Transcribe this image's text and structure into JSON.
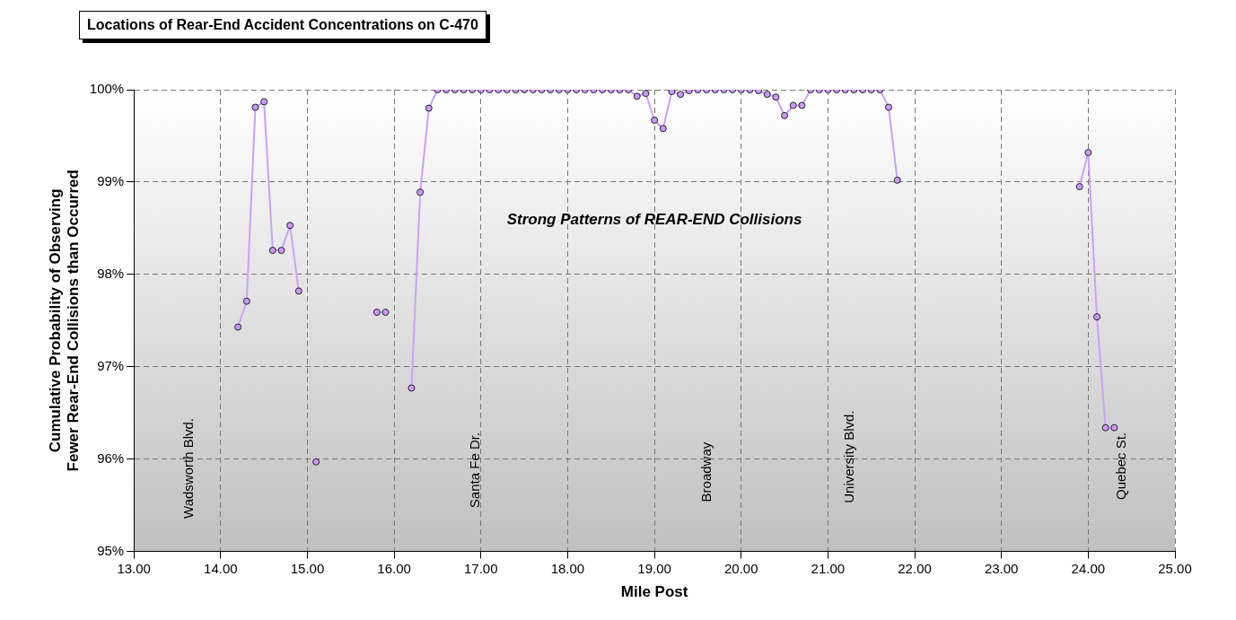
{
  "chart_data": {
    "type": "line",
    "title": "Locations of Rear-End Accident Concentrations on C-470",
    "xlabel": "Mile Post",
    "ylabel": "Cumulative Probability of Observing Fewer Rear-End Collisions than Occurred",
    "x": [
      14.2,
      14.3,
      14.4,
      14.5,
      14.6,
      14.7,
      14.8,
      14.9,
      15.0,
      15.1,
      15.2,
      15.3,
      15.4,
      15.5,
      15.6,
      15.7,
      15.8,
      15.9,
      16.0,
      16.1,
      16.2,
      16.3,
      16.4,
      16.5,
      16.6,
      16.7,
      16.8,
      16.9,
      17.0,
      17.1,
      17.2,
      17.3,
      17.4,
      17.5,
      17.6,
      17.7,
      17.8,
      17.9,
      18.0,
      18.1,
      18.2,
      18.3,
      18.4,
      18.5,
      18.6,
      18.7,
      18.8,
      18.9,
      19.0,
      19.1,
      19.2,
      19.3,
      19.4,
      19.5,
      19.6,
      19.7,
      19.8,
      19.9,
      20.0,
      20.1,
      20.2,
      20.3,
      20.4,
      20.5,
      20.6,
      20.7,
      20.8,
      20.9,
      21.0,
      21.1,
      21.2,
      21.3,
      21.4,
      21.5,
      21.6,
      21.7,
      21.8,
      21.9,
      22.0,
      22.1,
      22.2,
      22.3,
      22.4,
      22.5,
      22.6,
      22.7,
      22.8,
      22.9,
      23.0,
      23.1,
      23.2,
      23.3,
      23.4,
      23.5,
      23.6,
      23.7,
      23.8,
      23.9,
      24.0,
      24.1,
      24.2,
      24.3
    ],
    "series": [
      {
        "color": "#c8a2f8",
        "values": [
          97.43,
          97.71,
          99.81,
          99.87,
          98.26,
          98.26,
          98.53,
          97.82,
          null,
          95.97,
          null,
          null,
          null,
          null,
          null,
          null,
          97.59,
          97.59,
          null,
          null,
          96.77,
          98.89,
          99.8,
          100,
          100,
          100,
          100,
          100,
          100,
          100,
          100,
          100,
          100,
          100,
          100,
          100,
          100,
          100,
          100,
          100,
          100,
          100,
          100,
          100,
          100,
          100,
          99.93,
          99.96,
          99.67,
          99.58,
          99.98,
          99.95,
          99.99,
          100,
          100,
          100,
          100,
          100,
          100,
          100,
          99.99,
          99.95,
          99.92,
          99.72,
          99.83,
          99.83,
          100,
          100,
          100,
          100,
          100,
          100,
          100,
          100,
          100,
          99.81,
          99.02,
          null,
          null,
          null,
          null,
          null,
          null,
          null,
          null,
          null,
          null,
          null,
          null,
          null,
          null,
          null,
          null,
          null,
          null,
          null,
          null,
          98.95,
          99.32,
          97.54,
          96.34,
          96.34
        ]
      }
    ],
    "xlim": [
      13,
      25
    ],
    "xticks": [
      {
        "value": 13,
        "label": "13.00"
      },
      {
        "value": 14,
        "label": "14.00"
      },
      {
        "value": 15,
        "label": "15.00"
      },
      {
        "value": 16,
        "label": "16.00"
      },
      {
        "value": 17,
        "label": "17.00"
      },
      {
        "value": 18,
        "label": "18.00"
      },
      {
        "value": 19,
        "label": "19.00"
      },
      {
        "value": 20,
        "label": "20.00"
      },
      {
        "value": 21,
        "label": "21.00"
      },
      {
        "value": 22,
        "label": "22.00"
      },
      {
        "value": 23,
        "label": "23.00"
      },
      {
        "value": 24,
        "label": "24.00"
      },
      {
        "value": 25,
        "label": "25.00"
      }
    ],
    "ylim": [
      95,
      100
    ],
    "yticks": [
      {
        "value": 95,
        "label": "95%"
      },
      {
        "value": 96,
        "label": "96%"
      },
      {
        "value": 97,
        "label": "97%"
      },
      {
        "value": 98,
        "label": "98%"
      },
      {
        "value": 99,
        "label": "99%"
      },
      {
        "value": 100,
        "label": "100%"
      }
    ],
    "grid": true,
    "legend": false,
    "marker": "circle",
    "line_style": "solid",
    "annotations": [
      "Wadsworth Blvd.",
      "Santa Fe Dr.",
      "Broadway",
      "University Blvd.",
      "Quebec St.",
      "Strong Patterns of REAR-END Collisions"
    ]
  }
}
